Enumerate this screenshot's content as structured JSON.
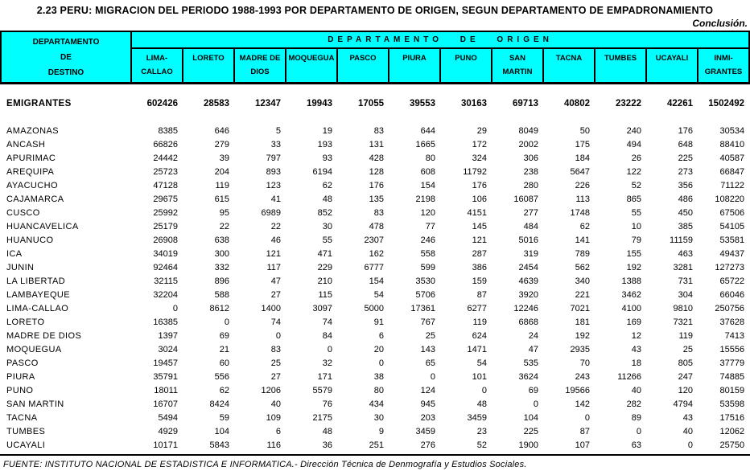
{
  "title": "2.23  PERU: MIGRACION DEL PERIODO 1988-1993 POR DEPARTAMENTO DE ORIGEN, SEGUN DEPARTAMENTO DE EMPADRONAMIENTO",
  "continuation_note": "Conclusión.",
  "colors": {
    "header_bg": "#00FFFF",
    "border": "#000000"
  },
  "table": {
    "corner_header": "DEPARTAMENTO\nDE\nDESTINO",
    "origin_group_header": "DEPARTAMENTO DE ORIGEN",
    "columns": [
      "LIMA-\nCALLAO",
      "LORETO",
      "MADRE DE\nDIOS",
      "MOQUEGUA",
      "PASCO",
      "PIURA",
      "PUNO",
      "SAN\nMARTIN",
      "TACNA",
      "TUMBES",
      "UCAYALI",
      "INMI-\nGRANTES"
    ],
    "totals_row": {
      "label": "EMIGRANTES",
      "values": [
        "602426",
        "28583",
        "12347",
        "19943",
        "17055",
        "39553",
        "30163",
        "69713",
        "40802",
        "23222",
        "42261",
        "1502492"
      ]
    },
    "rows": [
      {
        "label": "AMAZONAS",
        "values": [
          "8385",
          "646",
          "5",
          "19",
          "83",
          "644",
          "29",
          "8049",
          "50",
          "240",
          "176",
          "30534"
        ]
      },
      {
        "label": "ANCASH",
        "values": [
          "66826",
          "279",
          "33",
          "193",
          "131",
          "1665",
          "172",
          "2002",
          "175",
          "494",
          "648",
          "88410"
        ]
      },
      {
        "label": "APURIMAC",
        "values": [
          "24442",
          "39",
          "797",
          "93",
          "428",
          "80",
          "324",
          "306",
          "184",
          "26",
          "225",
          "40587"
        ]
      },
      {
        "label": "AREQUIPA",
        "values": [
          "25723",
          "204",
          "893",
          "6194",
          "128",
          "608",
          "11792",
          "238",
          "5647",
          "122",
          "273",
          "66847"
        ]
      },
      {
        "label": "AYACUCHO",
        "values": [
          "47128",
          "119",
          "123",
          "62",
          "176",
          "154",
          "176",
          "280",
          "226",
          "52",
          "356",
          "71122"
        ]
      },
      {
        "label": "CAJAMARCA",
        "values": [
          "29675",
          "615",
          "41",
          "48",
          "135",
          "2198",
          "106",
          "16087",
          "113",
          "865",
          "486",
          "108220"
        ]
      },
      {
        "label": "CUSCO",
        "values": [
          "25992",
          "95",
          "6989",
          "852",
          "83",
          "120",
          "4151",
          "277",
          "1748",
          "55",
          "450",
          "67506"
        ]
      },
      {
        "label": "HUANCAVELICA",
        "values": [
          "25179",
          "22",
          "22",
          "30",
          "478",
          "77",
          "145",
          "484",
          "62",
          "10",
          "385",
          "54105"
        ]
      },
      {
        "label": "HUANUCO",
        "values": [
          "26908",
          "638",
          "46",
          "55",
          "2307",
          "246",
          "121",
          "5016",
          "141",
          "79",
          "11159",
          "53581"
        ]
      },
      {
        "label": "ICA",
        "values": [
          "34019",
          "300",
          "121",
          "471",
          "162",
          "558",
          "287",
          "319",
          "789",
          "155",
          "463",
          "49437"
        ]
      },
      {
        "label": "JUNIN",
        "values": [
          "92464",
          "332",
          "117",
          "229",
          "6777",
          "599",
          "386",
          "2454",
          "562",
          "192",
          "3281",
          "127273"
        ]
      },
      {
        "label": "LA LIBERTAD",
        "values": [
          "32115",
          "896",
          "47",
          "210",
          "154",
          "3530",
          "159",
          "4639",
          "340",
          "1388",
          "731",
          "65722"
        ]
      },
      {
        "label": "LAMBAYEQUE",
        "values": [
          "32204",
          "588",
          "27",
          "115",
          "54",
          "5706",
          "87",
          "3920",
          "221",
          "3462",
          "304",
          "66046"
        ]
      },
      {
        "label": "LIMA-CALLAO",
        "values": [
          "0",
          "8612",
          "1400",
          "3097",
          "5000",
          "17361",
          "6277",
          "12246",
          "7021",
          "4100",
          "9810",
          "250756"
        ]
      },
      {
        "label": "LORETO",
        "values": [
          "16385",
          "0",
          "74",
          "74",
          "91",
          "767",
          "119",
          "6868",
          "181",
          "169",
          "7321",
          "37628"
        ]
      },
      {
        "label": "MADRE DE DIOS",
        "values": [
          "1397",
          "69",
          "0",
          "84",
          "6",
          "25",
          "624",
          "24",
          "192",
          "12",
          "119",
          "7413"
        ]
      },
      {
        "label": "MOQUEGUA",
        "values": [
          "3024",
          "21",
          "83",
          "0",
          "20",
          "143",
          "1471",
          "47",
          "2935",
          "43",
          "25",
          "15556"
        ]
      },
      {
        "label": "PASCO",
        "values": [
          "19457",
          "60",
          "25",
          "32",
          "0",
          "65",
          "54",
          "535",
          "70",
          "18",
          "805",
          "37779"
        ]
      },
      {
        "label": "PIURA",
        "values": [
          "35791",
          "556",
          "27",
          "171",
          "38",
          "0",
          "101",
          "3624",
          "243",
          "11266",
          "247",
          "74885"
        ]
      },
      {
        "label": "PUNO",
        "values": [
          "18011",
          "62",
          "1206",
          "5579",
          "80",
          "124",
          "0",
          "69",
          "19566",
          "40",
          "120",
          "80159"
        ]
      },
      {
        "label": "SAN MARTIN",
        "values": [
          "16707",
          "8424",
          "40",
          "76",
          "434",
          "945",
          "48",
          "0",
          "142",
          "282",
          "4794",
          "53598"
        ]
      },
      {
        "label": "TACNA",
        "values": [
          "5494",
          "59",
          "109",
          "2175",
          "30",
          "203",
          "3459",
          "104",
          "0",
          "89",
          "43",
          "17516"
        ]
      },
      {
        "label": "TUMBES",
        "values": [
          "4929",
          "104",
          "6",
          "48",
          "9",
          "3459",
          "23",
          "225",
          "87",
          "0",
          "40",
          "12062"
        ]
      },
      {
        "label": "UCAYALI",
        "values": [
          "10171",
          "5843",
          "116",
          "36",
          "251",
          "276",
          "52",
          "1900",
          "107",
          "63",
          "0",
          "25750"
        ]
      }
    ]
  },
  "footer": {
    "source": "FUENTE: INSTITUTO NACIONAL DE ESTADISTICA E INFORMATICA.- Dirección Técnica de Denmografía y Estudios Sociales."
  }
}
